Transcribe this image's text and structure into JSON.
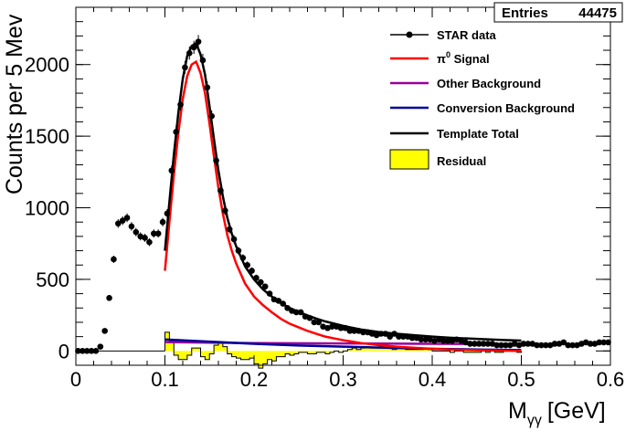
{
  "chart_data": {
    "type": "scatter",
    "xlabel_main": "M",
    "xlabel_sub": "γγ",
    "xlabel_unit": "[GeV]",
    "ylabel": "Counts per 5 Mev",
    "xlim": [
      0,
      0.6
    ],
    "ylim": [
      -100,
      2400
    ],
    "x_ticks": [
      0,
      0.1,
      0.2,
      0.3,
      0.4,
      0.5,
      0.6
    ],
    "x_tick_labels": [
      "0",
      "0.1",
      "0.2",
      "0.3",
      "0.4",
      "0.5",
      "0.6"
    ],
    "y_ticks": [
      0,
      500,
      1000,
      1500,
      2000
    ],
    "y_tick_labels": [
      "0",
      "500",
      "1000",
      "1500",
      "2000"
    ],
    "grid": false,
    "stats_box": {
      "label": "Entries",
      "value": "44475"
    },
    "legend_position": "top-right",
    "legend": [
      {
        "label": "STAR data",
        "marker": "dot-line",
        "color": "#000000"
      },
      {
        "label_main": "π",
        "label_sup": "0",
        "label_rest": " Signal",
        "marker": "line",
        "color": "#ff0000"
      },
      {
        "label": "Other Background",
        "marker": "line",
        "color": "#990099"
      },
      {
        "label": "Conversion Background",
        "marker": "line",
        "color": "#000099"
      },
      {
        "label": "Template Total",
        "marker": "line",
        "color": "#000000"
      },
      {
        "label": "Residual",
        "marker": "box",
        "color": "#ffff00"
      }
    ],
    "series": [
      {
        "name": "STAR data",
        "color": "#000000",
        "x": [
          0.0025,
          0.0075,
          0.0125,
          0.0175,
          0.0225,
          0.0275,
          0.0325,
          0.0375,
          0.0425,
          0.0475,
          0.0525,
          0.0575,
          0.0625,
          0.0675,
          0.0725,
          0.0775,
          0.0825,
          0.0875,
          0.0925,
          0.0975,
          0.1025,
          0.1075,
          0.1125,
          0.1175,
          0.1225,
          0.1275,
          0.1325,
          0.1375,
          0.1425,
          0.1475,
          0.1525,
          0.1575,
          0.1625,
          0.1675,
          0.1725,
          0.1775,
          0.1825,
          0.1875,
          0.1925,
          0.1975,
          0.2025,
          0.2075,
          0.2125,
          0.2175,
          0.2225,
          0.2275,
          0.2325,
          0.2375,
          0.2425,
          0.2475,
          0.2525,
          0.2575,
          0.2625,
          0.2675,
          0.2725,
          0.2775,
          0.2825,
          0.2875,
          0.2925,
          0.2975,
          0.3025,
          0.3075,
          0.3125,
          0.3175,
          0.3225,
          0.3275,
          0.3325,
          0.3375,
          0.3425,
          0.3475,
          0.3525,
          0.3575,
          0.3625,
          0.3675,
          0.3725,
          0.3775,
          0.3825,
          0.3875,
          0.3925,
          0.3975,
          0.4025,
          0.4075,
          0.4125,
          0.4175,
          0.4225,
          0.4275,
          0.4325,
          0.4375,
          0.4425,
          0.4475,
          0.4525,
          0.4575,
          0.4625,
          0.4675,
          0.4725,
          0.4775,
          0.4825,
          0.4875,
          0.4925,
          0.4975,
          0.5025,
          0.5075,
          0.5125,
          0.5175,
          0.5225,
          0.5275,
          0.5325,
          0.5375,
          0.5425,
          0.5475,
          0.5525,
          0.5575,
          0.5625,
          0.5675,
          0.5725,
          0.5775,
          0.5825,
          0.5875,
          0.5925,
          0.5975
        ],
        "y": [
          0,
          0,
          0,
          0,
          0,
          30,
          140,
          370,
          640,
          890,
          910,
          930,
          870,
          830,
          800,
          790,
          760,
          820,
          820,
          900,
          960,
          1260,
          1530,
          1720,
          1980,
          2080,
          2120,
          2160,
          2030,
          1840,
          1640,
          1330,
          1120,
          980,
          850,
          780,
          700,
          650,
          600,
          560,
          510,
          480,
          450,
          400,
          360,
          350,
          330,
          300,
          280,
          270,
          270,
          240,
          230,
          200,
          200,
          170,
          160,
          170,
          170,
          160,
          160,
          140,
          140,
          140,
          130,
          130,
          120,
          110,
          120,
          120,
          100,
          120,
          100,
          100,
          100,
          90,
          90,
          80,
          80,
          80,
          70,
          80,
          70,
          70,
          70,
          80,
          70,
          60,
          50,
          50,
          50,
          50,
          50,
          50,
          40,
          40,
          40,
          40,
          50,
          40,
          50,
          50,
          50,
          40,
          40,
          40,
          40,
          50,
          50,
          60,
          40,
          40,
          40,
          50,
          60,
          50,
          50,
          60,
          60,
          60
        ]
      },
      {
        "name": "π0 Signal",
        "color": "#ff0000",
        "x": [
          0.1,
          0.105,
          0.11,
          0.115,
          0.12,
          0.125,
          0.13,
          0.135,
          0.14,
          0.145,
          0.15,
          0.155,
          0.16,
          0.165,
          0.17,
          0.175,
          0.18,
          0.19,
          0.2,
          0.21,
          0.22,
          0.23,
          0.24,
          0.25,
          0.26,
          0.27,
          0.28,
          0.3,
          0.32,
          0.34,
          0.36,
          0.38,
          0.4,
          0.42,
          0.45,
          0.48,
          0.5
        ],
        "y": [
          560,
          900,
          1230,
          1520,
          1760,
          1920,
          2000,
          2020,
          1940,
          1800,
          1590,
          1360,
          1140,
          960,
          810,
          700,
          610,
          470,
          380,
          320,
          270,
          225,
          190,
          165,
          140,
          120,
          100,
          75,
          55,
          40,
          30,
          22,
          15,
          10,
          5,
          2,
          0
        ]
      },
      {
        "name": "Other Background",
        "color": "#990099",
        "x": [
          0.1,
          0.15,
          0.2,
          0.3,
          0.4,
          0.5
        ],
        "y": [
          62,
          58,
          55,
          52,
          50,
          48
        ]
      },
      {
        "name": "Conversion Background",
        "color": "#000099",
        "x": [
          0.1,
          0.15,
          0.2,
          0.25,
          0.3,
          0.35,
          0.4,
          0.45,
          0.5
        ],
        "y": [
          80,
          65,
          50,
          38,
          30,
          22,
          15,
          10,
          6
        ]
      },
      {
        "name": "Template Total",
        "color": "#000000",
        "x": [
          0.1,
          0.105,
          0.11,
          0.115,
          0.12,
          0.125,
          0.13,
          0.135,
          0.14,
          0.145,
          0.15,
          0.155,
          0.16,
          0.165,
          0.17,
          0.175,
          0.18,
          0.19,
          0.2,
          0.21,
          0.22,
          0.23,
          0.24,
          0.25,
          0.26,
          0.27,
          0.28,
          0.3,
          0.32,
          0.34,
          0.36,
          0.38,
          0.4,
          0.42,
          0.45,
          0.48,
          0.5
        ],
        "y": [
          700,
          1040,
          1370,
          1660,
          1900,
          2060,
          2130,
          2150,
          2070,
          1930,
          1710,
          1480,
          1260,
          1080,
          930,
          820,
          730,
          590,
          500,
          430,
          380,
          335,
          300,
          272,
          248,
          226,
          206,
          175,
          150,
          132,
          120,
          110,
          100,
          92,
          84,
          76,
          72
        ]
      },
      {
        "name": "Residual",
        "color": "#ffff00",
        "x": [
          0.1025,
          0.1075,
          0.1125,
          0.1175,
          0.1225,
          0.1275,
          0.1325,
          0.1375,
          0.1425,
          0.1475,
          0.1525,
          0.1575,
          0.1625,
          0.1675,
          0.1725,
          0.1775,
          0.1825,
          0.1875,
          0.1925,
          0.1975,
          0.2025,
          0.2075,
          0.2125,
          0.2175,
          0.2225,
          0.2275,
          0.2325,
          0.2375,
          0.2425,
          0.2475,
          0.2525,
          0.2575,
          0.2625,
          0.2675,
          0.2725,
          0.2775,
          0.2825,
          0.2875,
          0.2925,
          0.2975,
          0.3025,
          0.3075,
          0.3125,
          0.3175,
          0.3225,
          0.3275,
          0.3325,
          0.3375,
          0.3425,
          0.3475,
          0.3525,
          0.3575,
          0.3625,
          0.3675,
          0.3725,
          0.3775,
          0.3825,
          0.3875,
          0.3925,
          0.3975,
          0.4025,
          0.4075,
          0.4125,
          0.4175,
          0.4225,
          0.4275,
          0.4325,
          0.4375,
          0.4425,
          0.4475,
          0.4525,
          0.4575,
          0.4625,
          0.4675,
          0.4725,
          0.4775,
          0.4825,
          0.4875,
          0.4925,
          0.4975
        ],
        "y": [
          130,
          70,
          -30,
          -60,
          -60,
          -30,
          20,
          20,
          -40,
          -60,
          -20,
          40,
          60,
          30,
          -20,
          -40,
          -50,
          -60,
          -60,
          -50,
          -90,
          -120,
          -90,
          -60,
          -70,
          -40,
          -40,
          -20,
          -30,
          -20,
          -10,
          -10,
          -20,
          -20,
          -10,
          -10,
          -20,
          -10,
          0,
          -10,
          0,
          10,
          20,
          10,
          20,
          30,
          20,
          20,
          30,
          20,
          30,
          10,
          20,
          20,
          10,
          10,
          10,
          10,
          20,
          10,
          0,
          0,
          0,
          0,
          -10,
          0,
          0,
          -10,
          -10,
          -10,
          -10,
          0,
          -10,
          0,
          -10,
          -10,
          0,
          0,
          0,
          -10
        ]
      }
    ]
  }
}
